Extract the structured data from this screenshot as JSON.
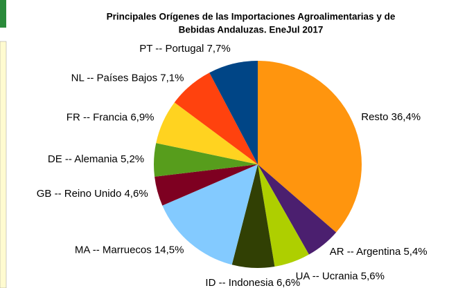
{
  "chart_data": {
    "type": "pie",
    "title": [
      "Principales Orígenes de las Importaciones Agroalimentarias y de",
      "Bebidas Andaluzas. EneJul 2017"
    ],
    "categories": [
      "Resto",
      "AR -- Argentina",
      "UA -- Ucrania",
      "ID -- Indonesia",
      "MA -- Marruecos",
      "GB -- Reino Unido",
      "DE -- Alemania",
      "FR -- Francia",
      "NL -- Países Bajos",
      "PT -- Portugal"
    ],
    "values": [
      36.4,
      5.4,
      5.6,
      6.6,
      14.5,
      4.6,
      5.2,
      6.9,
      7.1,
      7.7
    ],
    "value_labels": [
      "36,4%",
      "5,4%",
      "5,6%",
      "6,6%",
      "14,5%",
      "4,6%",
      "5,2%",
      "6,9%",
      "7,1%",
      "7,7%"
    ],
    "colors": [
      "#ff950e",
      "#4b1f6f",
      "#aecf00",
      "#314004",
      "#83caff",
      "#7e0021",
      "#579d1c",
      "#ffd320",
      "#ff420e",
      "#004586"
    ]
  }
}
